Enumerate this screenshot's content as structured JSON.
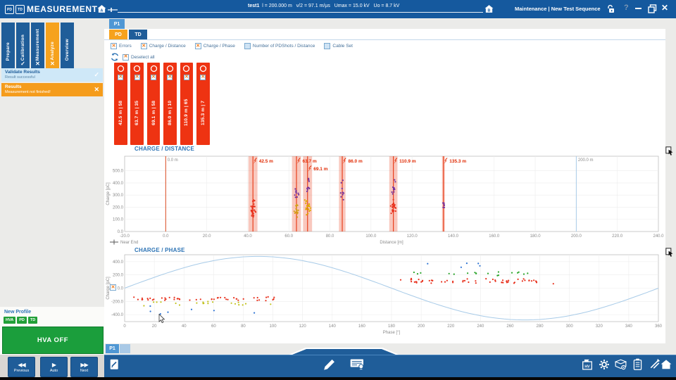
{
  "titlebar": {
    "app_title": "MEASUREMENT",
    "logo_badges": [
      "PD",
      "TD"
    ],
    "test_name": "test1",
    "test_params": "l = 200.000 m   v/2 = 97.1 m/µs   Umax = 15.0 kV   Uo = 8.7 kV",
    "cable_end_a": "A",
    "cable_end_b": "B",
    "right_label": "Maintenance | New Test Sequence",
    "help_label": "?"
  },
  "sidebar": {
    "steps": [
      {
        "label": "Prepare",
        "status": "none",
        "active": false
      },
      {
        "label": "Calibration",
        "status": "check",
        "active": false
      },
      {
        "label": "Measurement",
        "status": "cross",
        "active": false
      },
      {
        "label": "Analyze",
        "status": "cross",
        "active": true
      },
      {
        "label": "Overview",
        "status": "none",
        "active": false
      }
    ],
    "notifications": [
      {
        "title": "Validate Results",
        "subtitle": "Result successful",
        "type": "success"
      },
      {
        "title": "Results",
        "subtitle": "Measurement not finished!",
        "type": "warning"
      }
    ],
    "profile_label": "New Profile",
    "profile_badges": [
      "HVA",
      "PD",
      "TD"
    ],
    "hva_button": "HVA OFF",
    "nav_buttons": [
      {
        "label": "Previous",
        "icon": "prev"
      },
      {
        "label": "Auto",
        "icon": "auto"
      },
      {
        "label": "Next",
        "icon": "next"
      }
    ]
  },
  "main": {
    "page_tab": "P1",
    "bottom_tab": "P1",
    "mode_tabs": [
      {
        "label": "PD",
        "active": true
      },
      {
        "label": "TD",
        "active": false
      }
    ],
    "layer_checkboxes": [
      {
        "label": "Errors",
        "checked": true
      },
      {
        "label": "Charge / Distance",
        "checked": true
      },
      {
        "label": "Charge / Phase",
        "checked": true
      },
      {
        "label": "Number of PDShots / Distance",
        "checked": false
      },
      {
        "label": "Cable Set",
        "checked": false
      }
    ],
    "deselect_all": "Deselect all",
    "pd_sites": [
      {
        "distance": "42.5 m",
        "count": "58"
      },
      {
        "distance": "63.7 m",
        "count": "35"
      },
      {
        "distance": "69.1 m",
        "count": "58"
      },
      {
        "distance": "86.0 m",
        "count": "10"
      },
      {
        "distance": "110.9 m",
        "count": "65"
      },
      {
        "distance": "135.3 m",
        "count": "7"
      }
    ]
  },
  "toolbar_icons": [
    "notes",
    "edit-pencil",
    "report-certificate",
    "hv-log",
    "settings-gear",
    "system-tools",
    "protocol-list",
    "export-arrow",
    "home"
  ],
  "colors": {
    "titlebar_blue": "#15599e",
    "dark_blue": "#1f5d99",
    "accent_orange": "#f6a21d",
    "tab_blue": "#4f97d4",
    "alert_red": "#ee3312",
    "success_green": "#1b9e3c"
  },
  "chart_data": [
    {
      "type": "scatter",
      "title": "CHARGE / DISTANCE",
      "xlabel": "Distance [m]",
      "ylabel": "Charge [pC]",
      "xlim": [
        -20,
        240
      ],
      "xtick_step": 20,
      "xtick_decimals": 1,
      "ylim": [
        0,
        620
      ],
      "yticks": [
        0,
        100,
        200,
        300,
        400,
        500
      ],
      "grid": true,
      "legend": [
        {
          "label": "Near End",
          "marker": "line-tick"
        }
      ],
      "vlines": [
        {
          "x": 0,
          "color": "#d9481c",
          "label": "0.0 m"
        },
        {
          "x": 200,
          "color": "#a8cbe8",
          "label": "200.0 m"
        }
      ],
      "site_bands": [
        {
          "x": 42.5,
          "label": "42.5 m",
          "half_width": 2.2,
          "label_row": 0
        },
        {
          "x": 63.7,
          "label": "63.7 m",
          "half_width": 2.2,
          "label_row": 0
        },
        {
          "x": 69.1,
          "label": "69.1 m",
          "half_width": 2.2,
          "label_row": 1
        },
        {
          "x": 86.0,
          "label": "86.0 m",
          "half_width": 1.6,
          "label_row": 0
        },
        {
          "x": 110.9,
          "label": "110.9 m",
          "half_width": 2.0,
          "label_row": 0
        },
        {
          "x": 135.3,
          "label": "135.3 m",
          "half_width": 0.7,
          "label_row": 0
        }
      ],
      "clusters": [
        {
          "x": 42.5,
          "x_jitter": 1.4,
          "y_range": [
            110,
            230
          ],
          "count": 30,
          "color": "#e8321e"
        },
        {
          "x": 42.5,
          "x_jitter": 0.9,
          "y_range": [
            225,
            265
          ],
          "count": 4,
          "color": "#e8321e"
        },
        {
          "x": 63.7,
          "x_jitter": 1.4,
          "y_range": [
            100,
            270
          ],
          "count": 16,
          "color": "#d4a017"
        },
        {
          "x": 63.7,
          "x_jitter": 1.2,
          "y_range": [
            250,
            430
          ],
          "count": 10,
          "color": "#7030a0"
        },
        {
          "x": 69.1,
          "x_jitter": 1.6,
          "y_range": [
            120,
            280
          ],
          "count": 24,
          "color": "#e0a800"
        },
        {
          "x": 69.1,
          "x_jitter": 1.2,
          "y_range": [
            280,
            450
          ],
          "count": 9,
          "color": "#7030a0"
        },
        {
          "x": 86.0,
          "x_jitter": 0.9,
          "y_range": [
            180,
            470
          ],
          "count": 9,
          "color": "#7030a0"
        },
        {
          "x": 110.9,
          "x_jitter": 1.5,
          "y_range": [
            130,
            270
          ],
          "count": 26,
          "color": "#e8321e"
        },
        {
          "x": 110.9,
          "x_jitter": 1.2,
          "y_range": [
            270,
            450
          ],
          "count": 11,
          "color": "#7030a0"
        },
        {
          "x": 135.3,
          "x_jitter": 0.6,
          "y_range": [
            190,
            250
          ],
          "count": 7,
          "color": "#7030a0"
        }
      ]
    },
    {
      "type": "scatter",
      "title": "CHARGE / PHASE",
      "xlabel": "Phase [°]",
      "ylabel": "Charge [pC]",
      "xlim": [
        0,
        360
      ],
      "xtick_step": 20,
      "xtick_decimals": 0,
      "ylim": [
        -505,
        505
      ],
      "yticks": [
        -400,
        -200,
        0,
        200,
        400
      ],
      "grid": true,
      "sine": {
        "amplitude": 480,
        "period": 360,
        "color": "#a8cbe8"
      },
      "clusters": [
        {
          "x_range": [
            4,
            101
          ],
          "y_range": [
            -195,
            -130
          ],
          "count": 48,
          "color": "#e8321e"
        },
        {
          "x_range": [
            12,
            102
          ],
          "y_range": [
            -275,
            -185
          ],
          "count": 20,
          "color": "#c2c21e"
        },
        {
          "x_range": [
            10,
            96
          ],
          "y_range": [
            -420,
            -250
          ],
          "count": 7,
          "color": "#2e74d4"
        },
        {
          "x_range": [
            185,
            278
          ],
          "y_range": [
            60,
            150
          ],
          "count": 58,
          "color": "#e8321e"
        },
        {
          "x_range": [
            190,
            272
          ],
          "y_range": [
            175,
            260
          ],
          "count": 18,
          "color": "#28a428"
        },
        {
          "x_range": [
            196,
            258
          ],
          "y_range": [
            300,
            450
          ],
          "count": 5,
          "color": "#2e74d4"
        },
        {
          "x_range": [
            288,
            292
          ],
          "y_range": [
            65,
            85
          ],
          "count": 1,
          "color": "#e8321e"
        }
      ]
    }
  ]
}
